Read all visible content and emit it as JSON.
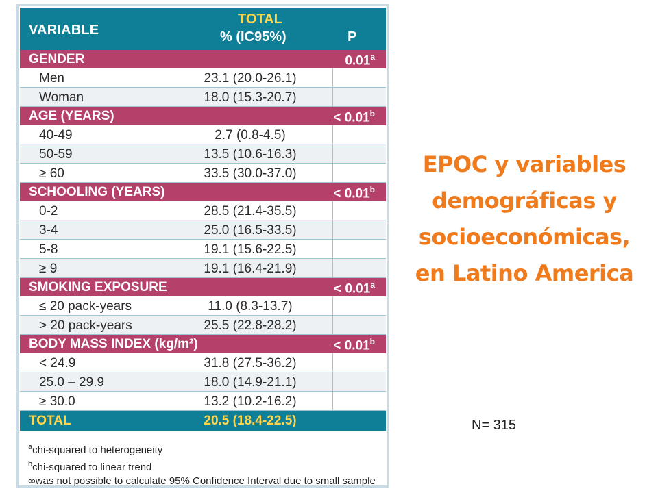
{
  "header": {
    "variable": "VARIABLE",
    "total": "TOTAL",
    "pct": "% (IC95%)",
    "p": "P"
  },
  "rows": [
    {
      "type": "cat",
      "label": "GENDER",
      "p": "0.01",
      "sup": "a"
    },
    {
      "type": "data",
      "label": "Men",
      "value": "23.1 (20.0-26.1)"
    },
    {
      "type": "data",
      "label": "Woman",
      "value": "18.0 (15.3-20.7)"
    },
    {
      "type": "cat",
      "label": "AGE (YEARS)",
      "p": "< 0.01",
      "sup": "b"
    },
    {
      "type": "data",
      "label": "40-49",
      "value": "2.7 (0.8-4.5)"
    },
    {
      "type": "data",
      "label": "50-59",
      "value": "13.5 (10.6-16.3)"
    },
    {
      "type": "data",
      "label": "≥ 60",
      "value": "33.5 (30.0-37.0)"
    },
    {
      "type": "cat",
      "label": "SCHOOLING (YEARS)",
      "p": "< 0.01",
      "sup": "b"
    },
    {
      "type": "data",
      "label": "0-2",
      "value": "28.5 (21.4-35.5)"
    },
    {
      "type": "data",
      "label": "3-4",
      "value": "25.0 (16.5-33.5)"
    },
    {
      "type": "data",
      "label": "5-8",
      "value": "19.1 (15.6-22.5)"
    },
    {
      "type": "data",
      "label": "≥ 9",
      "value": "19.1 (16.4-21.9)"
    },
    {
      "type": "cat",
      "label": "SMOKING EXPOSURE",
      "p": "< 0.01",
      "sup": "a"
    },
    {
      "type": "data",
      "label": "≤ 20 pack-years",
      "value": "11.0 (8.3-13.7)"
    },
    {
      "type": "data",
      "label": "> 20 pack-years",
      "value": "25.5 (22.8-28.2)"
    },
    {
      "type": "cat",
      "label": "BODY MASS INDEX (kg/m²)",
      "p": "< 0.01",
      "sup": "b"
    },
    {
      "type": "data",
      "label": "< 24.9",
      "value": "31.8 (27.5-36.2)"
    },
    {
      "type": "data",
      "label": "25.0 – 29.9",
      "value": "18.0 (14.9-21.1)"
    },
    {
      "type": "data",
      "label": "≥ 30.0",
      "value": "13.2 (10.2-16.2)"
    },
    {
      "type": "tot",
      "label": "TOTAL",
      "value": "20.5 (18.4-22.5)"
    }
  ],
  "notes": [
    {
      "mark": "a",
      "text": "chi-squared to heterogeneity"
    },
    {
      "mark": "b",
      "text": "chi-squared to linear trend"
    },
    {
      "mark": "∞",
      "text": "was not possible to calculate 95% Confidence Interval due to small sample"
    }
  ],
  "slide": {
    "title_lines": [
      "EPOC  y variables",
      "demográficas y",
      "socioeconómicas,",
      "en Latino America"
    ],
    "n_label": "N= 315"
  },
  "colors": {
    "header_teal": "#0e7f97",
    "category_magenta": "#b5416a",
    "total_yellow": "#ffd54a",
    "title_orange": "#f07b1c"
  }
}
